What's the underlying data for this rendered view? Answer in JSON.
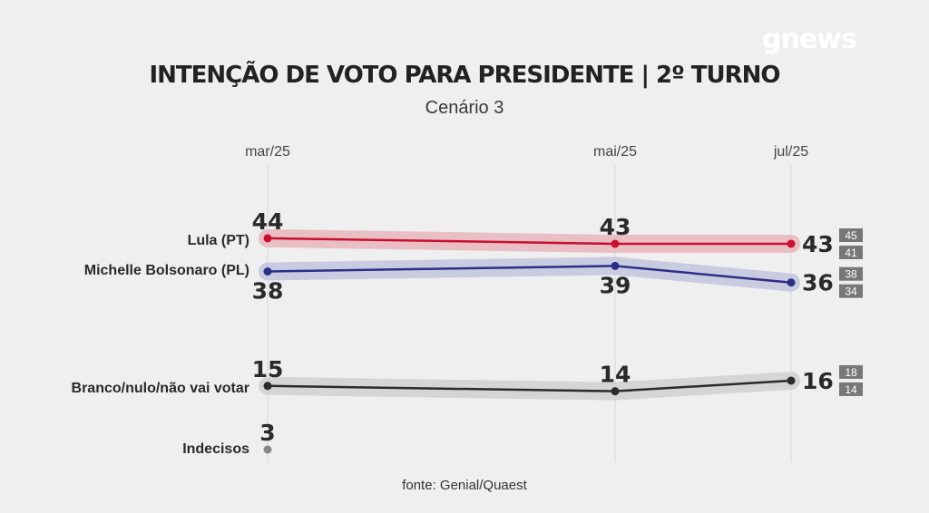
{
  "brand": {
    "logo_text": "gnews"
  },
  "chart_data": {
    "type": "line",
    "title": "INTENÇÃO DE VOTO PARA PRESIDENTE | 2º TURNO",
    "subtitle": "Cenário 3",
    "source": "fonte: Genial/Quaest",
    "x": [
      "mar/25",
      "mai/25",
      "jul/25"
    ],
    "ylim": [
      0,
      50
    ],
    "grid": "vertical",
    "series": [
      {
        "name": "Lula (PT)",
        "values": [
          44,
          43,
          43
        ],
        "color": "#c8102e",
        "band": "#e8b8bf",
        "margin": {
          "upper": "45",
          "lower": "41"
        }
      },
      {
        "name": "Michelle Bolsonaro (PL)",
        "values": [
          38,
          39,
          36
        ],
        "color": "#2b2f86",
        "band": "#c4c6df",
        "margin": {
          "upper": "38",
          "lower": "34"
        }
      },
      {
        "name": "Branco/nulo/não vai votar",
        "values": [
          15,
          14,
          16
        ],
        "color": "#2a2a2a",
        "band": "#d2d2d2",
        "margin": {
          "upper": "18",
          "lower": "14"
        }
      },
      {
        "name": "Indecisos",
        "values": [
          3,
          null,
          null
        ],
        "color": "#888888",
        "band": null,
        "margin": null
      }
    ]
  }
}
